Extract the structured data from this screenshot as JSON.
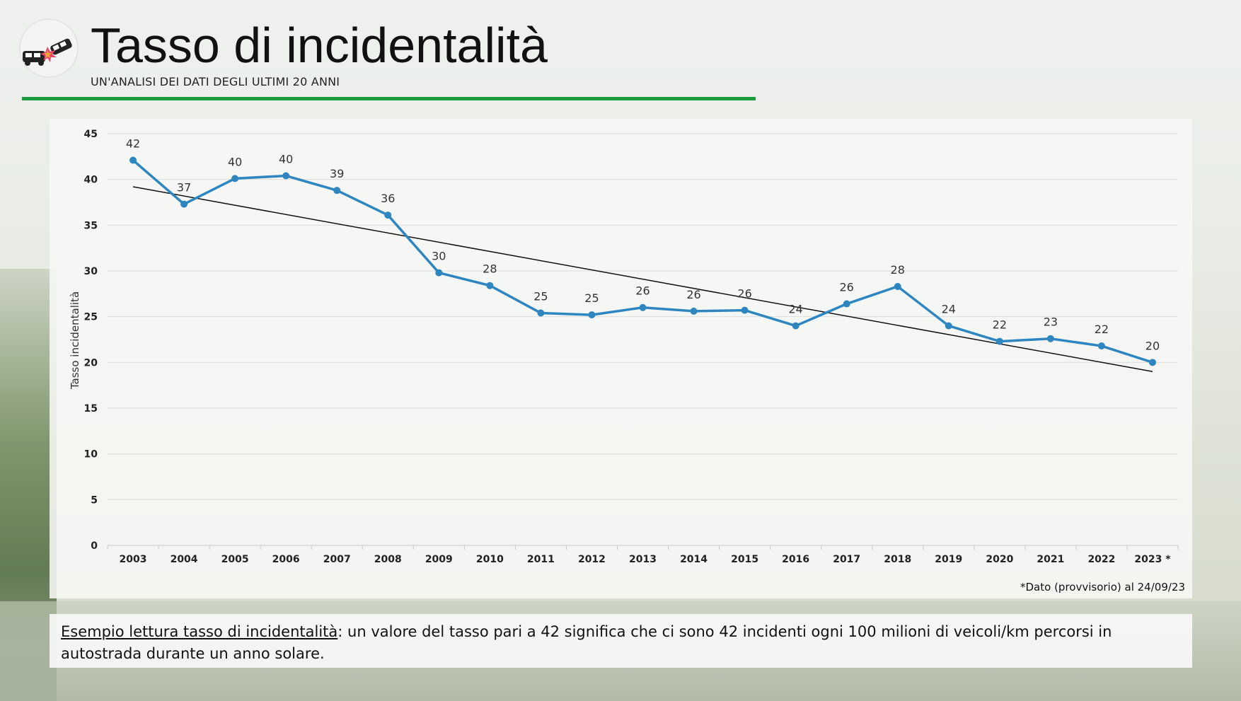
{
  "header": {
    "title": "Tasso di incidentalità",
    "subtitle": "UN'ANALISI DEI DATI DEGLI ULTIMI 20 ANNI",
    "logo_icon": "car-crash-icon",
    "accent_color": "#1a9a3c"
  },
  "chart_data": {
    "type": "line",
    "title": "",
    "xlabel": "",
    "ylabel": "Tasso incidentalità",
    "ylim": [
      0,
      45
    ],
    "yticks": [
      0,
      5,
      10,
      15,
      20,
      25,
      30,
      35,
      40,
      45
    ],
    "grid": true,
    "categories": [
      "2003",
      "2004",
      "2005",
      "2006",
      "2007",
      "2008",
      "2009",
      "2010",
      "2011",
      "2012",
      "2013",
      "2014",
      "2015",
      "2016",
      "2017",
      "2018",
      "2019",
      "2020",
      "2021",
      "2022",
      "2023 *"
    ],
    "series": [
      {
        "color": "#2e86c1",
        "values": [
          42.1,
          37.3,
          40.1,
          40.4,
          38.8,
          36.1,
          29.8,
          28.4,
          25.4,
          25.2,
          26.0,
          25.6,
          25.7,
          24.0,
          26.4,
          28.3,
          24.0,
          22.3,
          22.6,
          21.8,
          20.0
        ],
        "labels": [
          "42",
          "37",
          "40",
          "40",
          "39",
          "36",
          "30",
          "28",
          "25",
          "25",
          "26",
          "26",
          "26",
          "24",
          "26",
          "28",
          "24",
          "22",
          "23",
          "22",
          "20"
        ]
      }
    ],
    "trendline": {
      "start": 39.2,
      "end": 19.0,
      "color": "#111111"
    }
  },
  "footnote": "*Dato (provvisorio) al 24/09/23",
  "note": {
    "lead": "Esempio lettura tasso di incidentalità",
    "body": ": un valore del tasso pari a 42 significa che ci sono 42 incidenti ogni 100 milioni di veicoli/km percorsi in autostrada durante un anno solare."
  }
}
